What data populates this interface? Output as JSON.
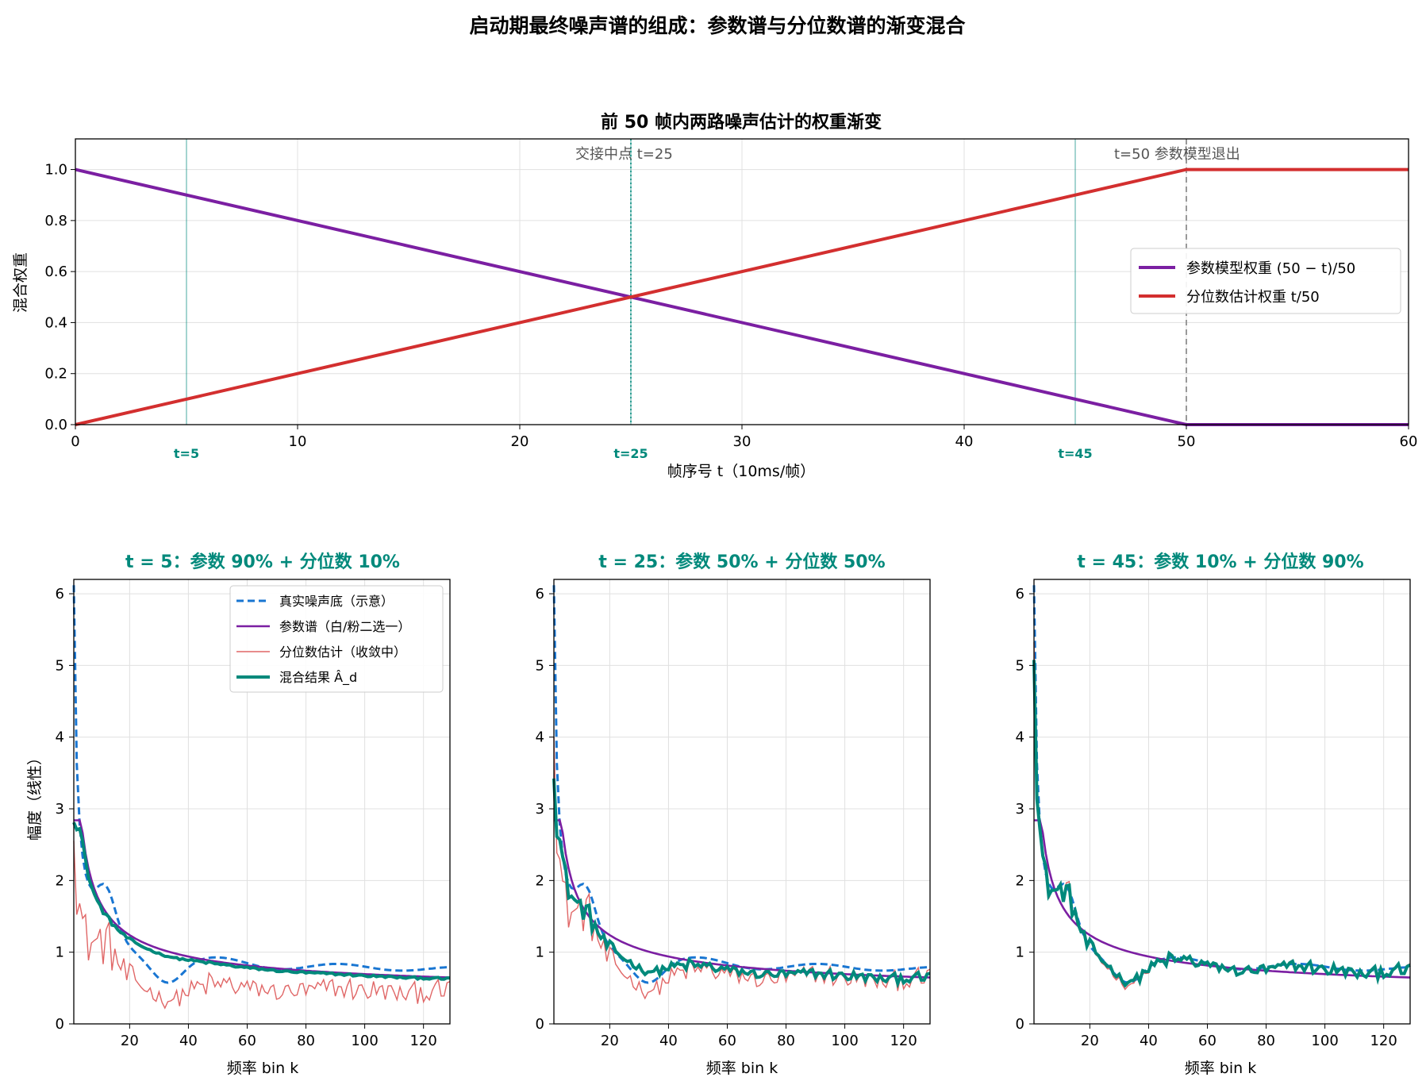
{
  "figure_title": "启动期最终噪声谱的组成：参数谱与分位数谱的渐变混合",
  "colors": {
    "param": "#7b1fa2",
    "quantile": "#d32f2f",
    "quantile_thin": "#e06666",
    "true_floor": "#1976d2",
    "mix": "#00897b",
    "teal_marker": "#00897b",
    "grid": "#e0e0e0",
    "gray": "#999999"
  },
  "chart_data": [
    {
      "type": "line",
      "title": "前 50 帧内两路噪声估计的权重渐变",
      "xlabel": "帧序号 t（10ms/帧）",
      "ylabel": "混合权重",
      "xlim": [
        0,
        60
      ],
      "ylim": [
        0,
        1.12
      ],
      "xticks": [
        0,
        10,
        20,
        30,
        40,
        50,
        60
      ],
      "yticks": [
        "0.0",
        "0.2",
        "0.4",
        "0.6",
        "0.8",
        "1.0"
      ],
      "grid": true,
      "legend_position": "center-right",
      "series": [
        {
          "name": "参数模型权重 (50 − t)/50",
          "x": [
            0,
            50,
            60
          ],
          "y": [
            1.0,
            0.0,
            0.0
          ]
        },
        {
          "name": "分位数估计权重 t/50",
          "x": [
            0,
            50,
            60
          ],
          "y": [
            0.0,
            1.0,
            1.0
          ]
        }
      ],
      "markers": [
        {
          "t": 5,
          "label": "t=5"
        },
        {
          "t": 25,
          "label": "t=25"
        },
        {
          "t": 45,
          "label": "t=45"
        }
      ],
      "annotations": [
        {
          "x": 25,
          "text": "交接中点 t=25"
        },
        {
          "x": 50,
          "text": "t=50 参数模型退出"
        }
      ]
    },
    {
      "type": "line",
      "title": "t = 5：参数 90% + 分位数 10%",
      "t": 5,
      "xlabel": "频率 bin k",
      "ylabel": "幅度（线性）",
      "xlim": [
        1,
        129
      ],
      "ylim": [
        0,
        6.2
      ],
      "xticks": [
        20,
        40,
        60,
        80,
        100,
        120
      ],
      "yticks": [
        0,
        1,
        2,
        3,
        4,
        5,
        6
      ],
      "legend": [
        "真实噪声底（示意）",
        "参数谱（白/粉二选一）",
        "分位数估计（收敛中）",
        "混合结果 Â_d"
      ],
      "legend_position": "top-right"
    },
    {
      "type": "line",
      "title": "t = 25：参数 50% + 分位数 50%",
      "t": 25,
      "xlabel": "频率 bin k",
      "xlim": [
        1,
        129
      ],
      "ylim": [
        0,
        6.2
      ],
      "xticks": [
        20,
        40,
        60,
        80,
        100,
        120
      ],
      "yticks": [
        0,
        1,
        2,
        3,
        4,
        5,
        6
      ]
    },
    {
      "type": "line",
      "title": "t = 45：参数 10% + 分位数 90%",
      "t": 45,
      "xlabel": "频率 bin k",
      "xlim": [
        1,
        129
      ],
      "ylim": [
        0,
        6.2
      ],
      "xticks": [
        20,
        40,
        60,
        80,
        100,
        120
      ],
      "yticks": [
        0,
        1,
        2,
        3,
        4,
        5,
        6
      ]
    }
  ]
}
